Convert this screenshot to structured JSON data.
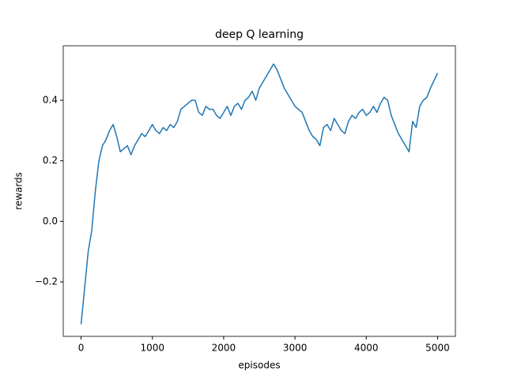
{
  "chart_data": {
    "type": "line",
    "title": "deep Q learning",
    "xlabel": "episodes",
    "ylabel": "rewards",
    "x": [
      0,
      100,
      150,
      200,
      250,
      300,
      350,
      400,
      450,
      500,
      550,
      600,
      650,
      700,
      750,
      800,
      850,
      900,
      950,
      1000,
      1050,
      1100,
      1150,
      1200,
      1250,
      1300,
      1350,
      1400,
      1450,
      1500,
      1550,
      1600,
      1650,
      1700,
      1750,
      1800,
      1850,
      1900,
      1950,
      2000,
      2050,
      2100,
      2150,
      2200,
      2250,
      2300,
      2350,
      2400,
      2450,
      2500,
      2550,
      2600,
      2650,
      2700,
      2750,
      2800,
      2850,
      2900,
      2950,
      3000,
      3050,
      3100,
      3150,
      3200,
      3250,
      3300,
      3350,
      3400,
      3450,
      3500,
      3550,
      3600,
      3650,
      3700,
      3750,
      3800,
      3850,
      3900,
      3950,
      4000,
      4050,
      4100,
      4150,
      4200,
      4250,
      4300,
      4350,
      4400,
      4450,
      4500,
      4550,
      4600,
      4650,
      4700,
      4750,
      4800,
      4850,
      4900,
      5000
    ],
    "series": [
      {
        "color": "#1f77b4",
        "values": [
          -0.34,
          -0.1,
          -0.03,
          0.1,
          0.2,
          0.25,
          0.27,
          0.3,
          0.32,
          0.28,
          0.23,
          0.24,
          0.25,
          0.22,
          0.25,
          0.27,
          0.29,
          0.28,
          0.3,
          0.32,
          0.3,
          0.29,
          0.31,
          0.3,
          0.32,
          0.31,
          0.33,
          0.37,
          0.38,
          0.39,
          0.4,
          0.4,
          0.36,
          0.35,
          0.38,
          0.37,
          0.37,
          0.35,
          0.34,
          0.36,
          0.38,
          0.35,
          0.38,
          0.39,
          0.37,
          0.4,
          0.41,
          0.43,
          0.4,
          0.44,
          0.46,
          0.48,
          0.5,
          0.52,
          0.5,
          0.47,
          0.44,
          0.42,
          0.4,
          0.38,
          0.37,
          0.36,
          0.33,
          0.3,
          0.28,
          0.27,
          0.25,
          0.31,
          0.32,
          0.3,
          0.34,
          0.32,
          0.3,
          0.29,
          0.33,
          0.35,
          0.34,
          0.36,
          0.37,
          0.35,
          0.36,
          0.38,
          0.36,
          0.39,
          0.41,
          0.4,
          0.35,
          0.32,
          0.29,
          0.27,
          0.25,
          0.23,
          0.33,
          0.31,
          0.38,
          0.4,
          0.41,
          0.44,
          0.49
        ]
      }
    ],
    "xlim": [
      -250,
      5250
    ],
    "ylim": [
      -0.38,
      0.58
    ],
    "xticks": [
      0,
      1000,
      2000,
      3000,
      4000,
      5000
    ],
    "yticks": [
      {
        "value": -0.2,
        "label": "−0.2"
      },
      {
        "value": 0,
        "label": "0.0"
      },
      0.2,
      0.4
    ]
  }
}
